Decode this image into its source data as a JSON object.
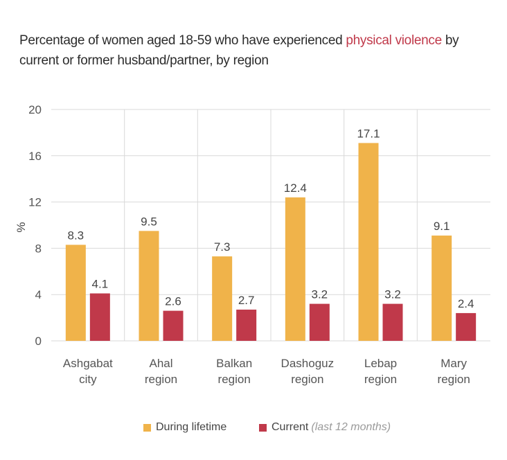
{
  "title": {
    "before": "Percentage of women aged 18-59 who have experienced ",
    "highlight": "physical violence",
    "after": " by current or former husband/partner, by region"
  },
  "colors": {
    "lifetime": "#f0b34a",
    "current": "#c0394a",
    "highlight": "#c0394a",
    "grid": "#d9d9d9"
  },
  "legend": {
    "lifetime_label": "During lifetime",
    "current_label": "Current",
    "current_note": "(last 12 months)"
  },
  "chart_data": {
    "type": "bar",
    "title": "Percentage of women aged 18-59 who have experienced physical violence by current or former husband/partner, by region",
    "ylabel": "%",
    "xlabel": "",
    "ylim": [
      0,
      20
    ],
    "yticks": [
      0,
      4,
      8,
      12,
      16,
      20
    ],
    "grid": true,
    "legend_position": "bottom",
    "categories": [
      [
        "Ashgabat",
        "city"
      ],
      [
        "Ahal",
        "region"
      ],
      [
        "Balkan",
        "region"
      ],
      [
        "Dashoguz",
        "region"
      ],
      [
        "Lebap",
        "region"
      ],
      [
        "Mary",
        "region"
      ]
    ],
    "series": [
      {
        "name": "During lifetime",
        "values": [
          8.3,
          9.5,
          7.3,
          12.4,
          17.1,
          9.1
        ]
      },
      {
        "name": "Current (last 12 months)",
        "values": [
          4.1,
          2.6,
          2.7,
          3.2,
          3.2,
          2.4
        ]
      }
    ]
  }
}
